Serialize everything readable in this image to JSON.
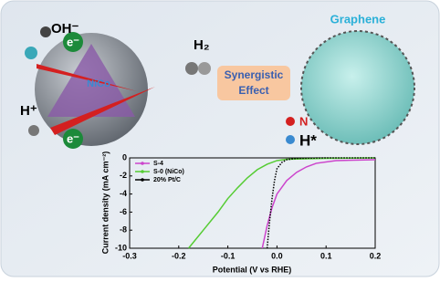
{
  "chart_data": {
    "type": "line",
    "xlabel": "Potential (V vs RHE)",
    "ylabel": "Current density (mA cm⁻²)",
    "xlim": [
      -0.3,
      0.2
    ],
    "xticks": [
      -0.3,
      -0.2,
      -0.1,
      {
        "value": 0,
        "label": "0.0"
      },
      0.1,
      0.2
    ],
    "ylim": [
      -10,
      0
    ],
    "yticks": [
      0,
      -2,
      -4,
      -6,
      -8,
      -10
    ],
    "legend": "upper left",
    "series": [
      {
        "name": "S-4",
        "color": "#cc44cc",
        "x": [
          -0.03,
          -0.02,
          -0.01,
          0.0,
          0.02,
          0.04,
          0.06,
          0.08,
          0.12,
          0.2
        ],
        "values": [
          -10,
          -7.5,
          -5.5,
          -4,
          -2.5,
          -1.6,
          -1,
          -0.6,
          -0.3,
          -0.2
        ]
      },
      {
        "name": "S-0 (NiCo)",
        "color": "#55cc33",
        "x": [
          -0.18,
          -0.15,
          -0.12,
          -0.1,
          -0.08,
          -0.06,
          -0.04,
          -0.02,
          0.0,
          0.02,
          0.1,
          0.2
        ],
        "values": [
          -10,
          -8,
          -6,
          -4.5,
          -3.3,
          -2.2,
          -1.3,
          -0.7,
          -0.3,
          -0.15,
          -0.05,
          0
        ]
      },
      {
        "name": "20% Pt/C",
        "color": "#000000",
        "x": [
          -0.02,
          -0.015,
          -0.01,
          -0.005,
          0.0,
          0.01,
          0.02,
          0.04,
          0.1,
          0.2
        ],
        "values": [
          -10,
          -7,
          -4.5,
          -2.5,
          -1.2,
          -0.5,
          -0.2,
          -0.05,
          0,
          0
        ]
      }
    ],
    "annotations": [
      "OH⁻",
      "e⁻",
      "H₂",
      "Synergistic",
      "Effect",
      "Graphene",
      "N",
      "H*",
      "H⁺",
      "e⁻",
      "NiCo"
    ]
  }
}
